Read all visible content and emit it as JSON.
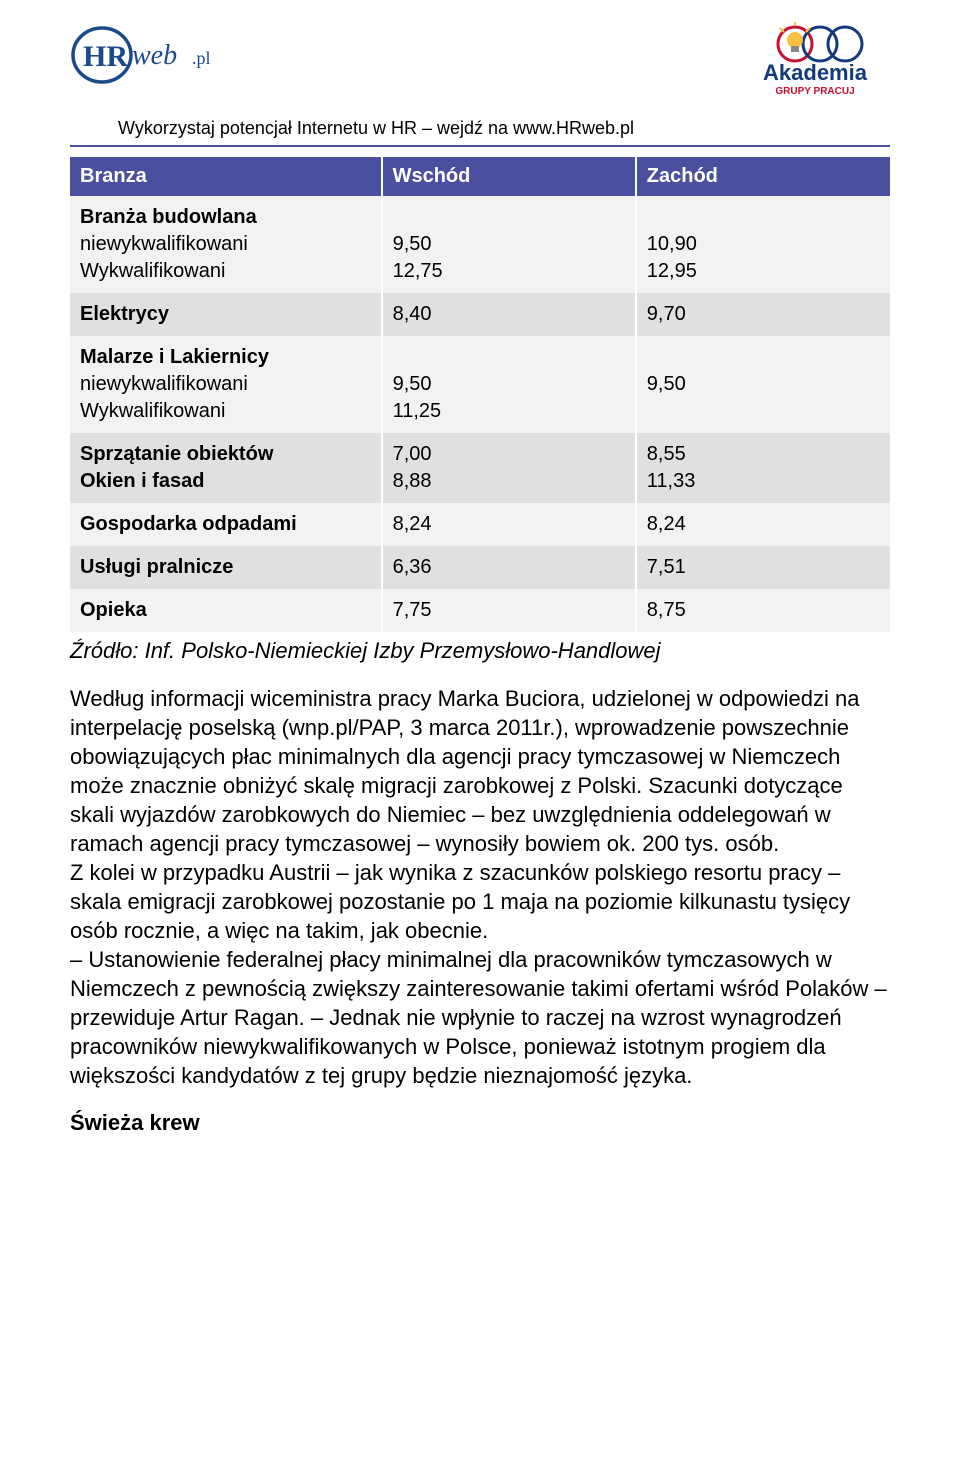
{
  "header": {
    "logo_left_hr": "HR",
    "logo_left_suffix": "web.pl",
    "logo_right_title": "Akademia",
    "logo_right_sub": "GRUPY PRACUJ",
    "subtitle_prefix": "Wykorzystaj potencjał Internetu w HR – wejdź na ",
    "subtitle_link": "www.HRweb.pl"
  },
  "table": {
    "header_cells": [
      "Branza",
      "Wschód",
      "Zachód"
    ],
    "sections": [
      {
        "band": "a",
        "rows": [
          {
            "label": "Branża budowlana",
            "bold": true,
            "w": "",
            "z": ""
          },
          {
            "label": "niewykwalifikowani",
            "bold": false,
            "w": "9,50",
            "z": "10,90"
          },
          {
            "label": "Wykwalifikowani",
            "bold": false,
            "w": "12,75",
            "z": "12,95"
          }
        ]
      },
      {
        "band": "b",
        "rows": [
          {
            "label": "Elektrycy",
            "bold": true,
            "w": "8,40",
            "z": "9,70"
          }
        ]
      },
      {
        "band": "a",
        "rows": [
          {
            "label": "Malarze i Lakiernicy",
            "bold": true,
            "w": "",
            "z": ""
          },
          {
            "label": "niewykwalifikowani",
            "bold": false,
            "w": "9,50",
            "z": "9,50"
          },
          {
            "label": "Wykwalifikowani",
            "bold": false,
            "w": "11,25",
            "z": ""
          }
        ]
      },
      {
        "band": "b",
        "rows": [
          {
            "label": "Sprzątanie obiektów",
            "bold": true,
            "w": "7,00",
            "z": "8,55"
          },
          {
            "label": "Okien i fasad",
            "bold": true,
            "w": "8,88",
            "z": "11,33"
          }
        ]
      },
      {
        "band": "a",
        "rows": [
          {
            "label": "Gospodarka odpadami",
            "bold": true,
            "w": "8,24",
            "z": "8,24"
          }
        ]
      },
      {
        "band": "b",
        "rows": [
          {
            "label": "Usługi pralnicze",
            "bold": true,
            "w": "6,36",
            "z": "7,51"
          }
        ]
      },
      {
        "band": "a",
        "rows": [
          {
            "label": "Opieka",
            "bold": true,
            "w": "7,75",
            "z": "8,75"
          }
        ]
      }
    ]
  },
  "source_line": "Źródło: Inf. Polsko-Niemieckiej Izby Przemysłowo-Handlowej",
  "body_paragraph": "Według informacji wiceministra pracy Marka Buciora, udzielonej w odpowiedzi na interpelację poselską (wnp.pl/PAP, 3 marca 2011r.), wprowadzenie powszechnie obowiązujących płac minimalnych dla agencji pracy tymczasowej w Niemczech może znacznie obniżyć skalę migracji zarobkowej z Polski. Szacunki dotyczące skali wyjazdów zarobkowych do Niemiec – bez uwzględnienia oddelegowań w ramach agencji pracy tymczasowej – wynosiły bowiem ok. 200 tys. osób.\nZ kolei w przypadku Austrii – jak wynika z szacunków polskiego resortu pracy – skala emigracji zarobkowej pozostanie po 1 maja na poziomie kilkunastu tysięcy osób rocznie, a więc na takim, jak obecnie.\n– Ustanowienie federalnej płacy minimalnej dla pracowników tymczasowych w Niemczech z pewnością zwiększy zainteresowanie takimi ofertami wśród Polaków – przewiduje Artur Ragan. – Jednak nie wpłynie to raczej na wzrost wynagrodzeń pracowników niewykwalifikowanych w Polsce, ponieważ istotnym progiem dla większości kandydatów z tej grupy będzie nieznajomość języka.",
  "section_heading": "Świeża krew",
  "colors": {
    "table_header_bg": "#4a4fa0",
    "band_a": "#f2f2f2",
    "band_b": "#e0e0e0",
    "hr_blue": "#1b4a8a",
    "akademia_red": "#c8102e",
    "akademia_blue": "#133a7c",
    "bulb_yellow": "#f6c142"
  }
}
